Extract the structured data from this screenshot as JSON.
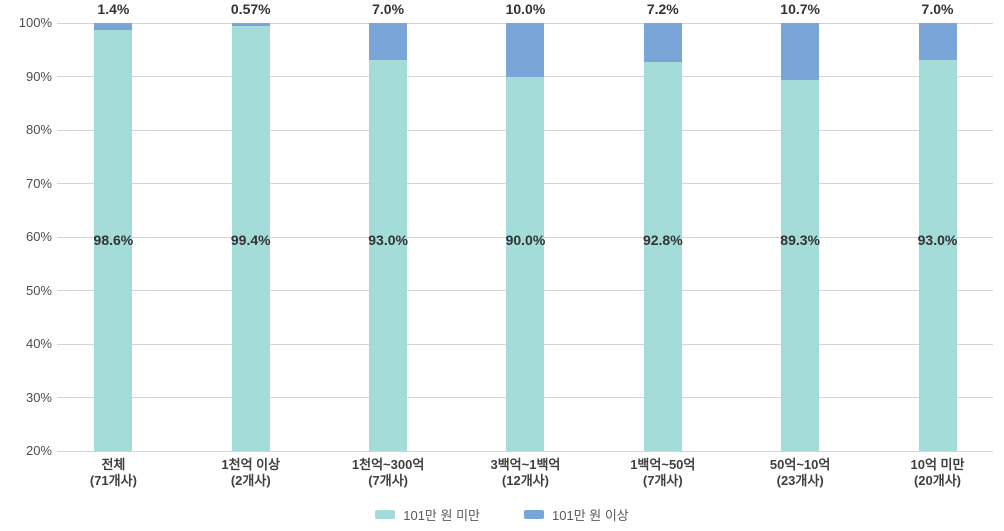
{
  "chart_data": {
    "type": "bar",
    "subtype": "stacked-100-column",
    "title": "",
    "xlabel": "",
    "ylabel": "",
    "categories": [
      {
        "label": "전체",
        "sublabel": "(71개사)"
      },
      {
        "label": "1천억 이상",
        "sublabel": "(2개사)"
      },
      {
        "label": "1천억~300억",
        "sublabel": "(7개사)"
      },
      {
        "label": "3백억~1백억",
        "sublabel": "(12개사)"
      },
      {
        "label": "1백억~50억",
        "sublabel": "(7개사)"
      },
      {
        "label": "50억~10억",
        "sublabel": "(23개사)"
      },
      {
        "label": "10억 미만",
        "sublabel": "(20개사)"
      }
    ],
    "series": [
      {
        "name": "101만 원 미만",
        "color": "#a4dcd9",
        "values": [
          98.6,
          99.4,
          93.0,
          90.0,
          92.8,
          89.3,
          93.0
        ],
        "labels": [
          "98.6%",
          "99.4%",
          "93.0%",
          "90.0%",
          "92.8%",
          "89.3%",
          "93.0%"
        ],
        "label_position": "inside"
      },
      {
        "name": "101만 원 이상",
        "color": "#7aa5d8",
        "values": [
          1.4,
          0.57,
          7.0,
          10.0,
          7.2,
          10.7,
          7.0
        ],
        "labels": [
          "1.4%",
          "0.57%",
          "7.0%",
          "10.0%",
          "7.2%",
          "10.7%",
          "7.0%"
        ],
        "label_position": "above"
      }
    ],
    "y_axis": {
      "min": 20,
      "max": 100,
      "tick_step": 10,
      "ticks": [
        "100%",
        "90%",
        "80%",
        "70%",
        "60%",
        "50%",
        "40%",
        "30%",
        "20%"
      ]
    },
    "grid": true,
    "gridline_color": "#d4d4d4",
    "legend_position": "bottom"
  }
}
